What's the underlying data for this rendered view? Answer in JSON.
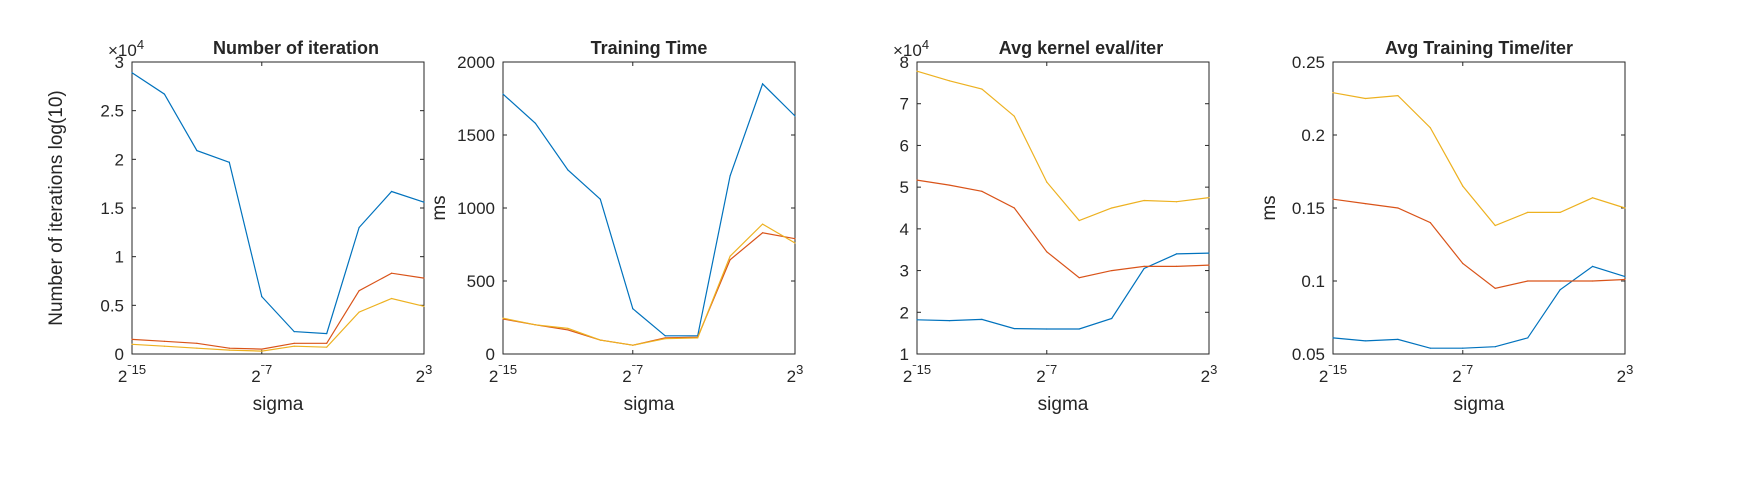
{
  "chart_data": [
    {
      "type": "line",
      "title": "Number of iteration",
      "xlabel": "sigma",
      "ylabel": "Number of iterations log(10)",
      "exponent_label": "×10^4",
      "xlim": [
        -15,
        3
      ],
      "ylim": [
        0,
        3
      ],
      "yticks": [
        0,
        0.5,
        1,
        1.5,
        2,
        2.5,
        3
      ],
      "ytick_labels": [
        "0",
        "0.5",
        "1",
        "1.5",
        "2",
        "2.5",
        "3"
      ],
      "x": [
        -15,
        -13,
        -11,
        -9,
        -7,
        -5,
        -3,
        -1,
        1,
        3
      ],
      "xticks": [
        {
          "value": -15,
          "label": "2^-15"
        },
        {
          "value": -7,
          "label": "2^-7"
        },
        {
          "value": 3,
          "label": "2^3"
        }
      ],
      "series": [
        {
          "color": "#0072BD",
          "values": [
            2.89,
            2.67,
            2.09,
            1.97,
            0.59,
            0.23,
            0.21,
            1.3,
            1.67,
            1.56
          ]
        },
        {
          "color": "#D95319",
          "values": [
            0.15,
            0.13,
            0.11,
            0.06,
            0.05,
            0.11,
            0.11,
            0.65,
            0.83,
            0.78
          ]
        },
        {
          "color": "#EDB120",
          "values": [
            0.1,
            0.08,
            0.06,
            0.04,
            0.03,
            0.08,
            0.07,
            0.43,
            0.57,
            0.49
          ]
        }
      ]
    },
    {
      "type": "line",
      "title": "Training Time",
      "xlabel": "sigma",
      "ylabel": "ms",
      "exponent_label": "",
      "xlim": [
        -15,
        3
      ],
      "ylim": [
        0,
        2000
      ],
      "yticks": [
        0,
        500,
        1000,
        1500,
        2000
      ],
      "ytick_labels": [
        "0",
        "500",
        "1000",
        "1500",
        "2000"
      ],
      "x": [
        -15,
        -13,
        -11,
        -9,
        -7,
        -5,
        -3,
        -1,
        1,
        3
      ],
      "xticks": [
        {
          "value": -15,
          "label": "2^-15"
        },
        {
          "value": -7,
          "label": "2^-7"
        },
        {
          "value": 3,
          "label": "2^3"
        }
      ],
      "series": [
        {
          "color": "#0072BD",
          "values": [
            1780,
            1580,
            1260,
            1060,
            310,
            125,
            125,
            1220,
            1850,
            1630
          ]
        },
        {
          "color": "#D95319",
          "values": [
            240,
            200,
            165,
            95,
            60,
            110,
            115,
            645,
            830,
            790
          ]
        },
        {
          "color": "#EDB120",
          "values": [
            245,
            200,
            175,
            95,
            60,
            105,
            110,
            670,
            890,
            760
          ]
        }
      ]
    },
    {
      "type": "line",
      "title": "Avg kernel eval/iter",
      "xlabel": "sigma",
      "ylabel": "",
      "exponent_label": "×10^4",
      "xlim": [
        -15,
        3
      ],
      "ylim": [
        1,
        8
      ],
      "yticks": [
        1,
        2,
        3,
        4,
        5,
        6,
        7,
        8
      ],
      "ytick_labels": [
        "1",
        "2",
        "3",
        "4",
        "5",
        "6",
        "7",
        "8"
      ],
      "x": [
        -15,
        -13,
        -11,
        -9,
        -7,
        -5,
        -3,
        -1,
        1,
        3
      ],
      "xticks": [
        {
          "value": -15,
          "label": "2^-15"
        },
        {
          "value": -7,
          "label": "2^-7"
        },
        {
          "value": 3,
          "label": "2^3"
        }
      ],
      "series": [
        {
          "color": "#0072BD",
          "values": [
            1.82,
            1.8,
            1.83,
            1.61,
            1.6,
            1.6,
            1.85,
            3.05,
            3.4,
            3.42
          ]
        },
        {
          "color": "#D95319",
          "values": [
            5.17,
            5.05,
            4.9,
            4.5,
            3.45,
            2.83,
            3.0,
            3.1,
            3.1,
            3.13
          ]
        },
        {
          "color": "#EDB120",
          "values": [
            7.78,
            7.55,
            7.35,
            6.7,
            5.12,
            4.2,
            4.5,
            4.68,
            4.65,
            4.75
          ]
        }
      ]
    },
    {
      "type": "line",
      "title": "Avg Training Time/iter",
      "xlabel": "sigma",
      "ylabel": "ms",
      "exponent_label": "",
      "xlim": [
        -15,
        3
      ],
      "ylim": [
        0.05,
        0.25
      ],
      "yticks": [
        0.05,
        0.1,
        0.15,
        0.2,
        0.25
      ],
      "ytick_labels": [
        "0.05",
        "0.1",
        "0.15",
        "0.2",
        "0.25"
      ],
      "x": [
        -15,
        -13,
        -11,
        -9,
        -7,
        -5,
        -3,
        -1,
        1,
        3
      ],
      "xticks": [
        {
          "value": -15,
          "label": "2^-15"
        },
        {
          "value": -7,
          "label": "2^-7"
        },
        {
          "value": 3,
          "label": "2^3"
        }
      ],
      "series": [
        {
          "color": "#0072BD",
          "values": [
            0.061,
            0.059,
            0.06,
            0.054,
            0.054,
            0.055,
            0.061,
            0.094,
            0.11,
            0.103
          ]
        },
        {
          "color": "#D95319",
          "values": [
            0.156,
            0.153,
            0.15,
            0.14,
            0.112,
            0.095,
            0.1,
            0.1,
            0.1,
            0.101
          ]
        },
        {
          "color": "#EDB120",
          "values": [
            0.229,
            0.225,
            0.227,
            0.205,
            0.165,
            0.138,
            0.147,
            0.147,
            0.157,
            0.15
          ]
        }
      ]
    }
  ]
}
